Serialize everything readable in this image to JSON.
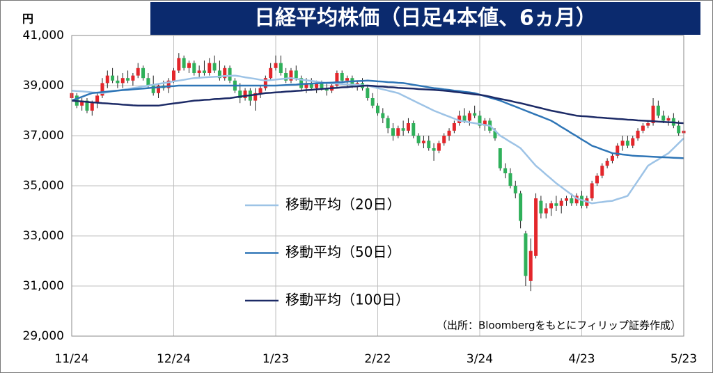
{
  "chart_data": {
    "type": "candlestick",
    "title": "日経平均株価（日足4本値、6ヵ月）",
    "y_unit": "円",
    "source": "（出所：Bloombergをもとにフィリップ証券作成）",
    "ylim": [
      29000,
      41000
    ],
    "yticks": [
      {
        "value": 29000,
        "label": "29,000"
      },
      {
        "value": 31000,
        "label": "31,000"
      },
      {
        "value": 33000,
        "label": "33,000"
      },
      {
        "value": 35000,
        "label": "35,000"
      },
      {
        "value": 37000,
        "label": "37,000"
      },
      {
        "value": 39000,
        "label": "39,000"
      },
      {
        "value": 41000,
        "label": "41,000"
      }
    ],
    "grid": true,
    "up_color": "#e3262b",
    "down_color": "#2fb05a",
    "categories": [
      "11/24",
      null,
      null,
      null,
      null,
      null,
      null,
      null,
      null,
      null,
      null,
      null,
      null,
      null,
      null,
      null,
      null,
      null,
      null,
      null,
      "12/24",
      null,
      null,
      null,
      null,
      null,
      null,
      null,
      null,
      null,
      null,
      null,
      null,
      null,
      null,
      null,
      null,
      null,
      null,
      null,
      "1/23",
      null,
      null,
      null,
      null,
      null,
      null,
      null,
      null,
      null,
      null,
      null,
      null,
      null,
      null,
      null,
      null,
      null,
      null,
      null,
      "2/22",
      null,
      null,
      null,
      null,
      null,
      null,
      null,
      null,
      null,
      null,
      null,
      null,
      null,
      null,
      null,
      null,
      null,
      null,
      null,
      "3/24",
      null,
      null,
      null,
      null,
      null,
      null,
      null,
      null,
      null,
      null,
      null,
      null,
      null,
      null,
      null,
      null,
      null,
      null,
      null,
      "4/23",
      null,
      null,
      null,
      null,
      null,
      null,
      null,
      null,
      null,
      null,
      null,
      null,
      null,
      null,
      null,
      null,
      null,
      null,
      null,
      "5/23"
    ],
    "ohlc": [
      [
        38500,
        38800,
        38300,
        38700
      ],
      [
        38600,
        38700,
        38100,
        38200
      ],
      [
        38200,
        38500,
        38000,
        38400
      ],
      [
        38400,
        38500,
        37900,
        38000
      ],
      [
        38000,
        38400,
        37800,
        38300
      ],
      [
        38300,
        38700,
        38100,
        38600
      ],
      [
        38600,
        39300,
        38500,
        39100
      ],
      [
        39100,
        39600,
        38900,
        39400
      ],
      [
        39400,
        39700,
        39100,
        39200
      ],
      [
        39200,
        39400,
        38900,
        39100
      ],
      [
        39100,
        39500,
        38900,
        39300
      ],
      [
        39300,
        39600,
        39100,
        39200
      ],
      [
        39200,
        39500,
        39000,
        39400
      ],
      [
        39400,
        39900,
        39300,
        39700
      ],
      [
        39700,
        39800,
        39200,
        39300
      ],
      [
        39300,
        39500,
        38900,
        39000
      ],
      [
        39000,
        39400,
        38600,
        38700
      ],
      [
        38700,
        39100,
        38500,
        39000
      ],
      [
        39000,
        39200,
        38800,
        38900
      ],
      [
        38900,
        39300,
        38700,
        39200
      ],
      [
        39200,
        39700,
        39100,
        39600
      ],
      [
        39600,
        40300,
        39500,
        40100
      ],
      [
        40100,
        40200,
        39600,
        39700
      ],
      [
        39700,
        40000,
        39500,
        39900
      ],
      [
        39900,
        40000,
        39400,
        39500
      ],
      [
        39500,
        39800,
        39300,
        39600
      ],
      [
        39600,
        40000,
        39400,
        39500
      ],
      [
        39500,
        40100,
        39400,
        39900
      ],
      [
        39900,
        40200,
        39500,
        39600
      ],
      [
        39600,
        40000,
        39200,
        39300
      ],
      [
        39300,
        39800,
        39200,
        39700
      ],
      [
        39700,
        39800,
        39100,
        39200
      ],
      [
        39200,
        39300,
        38700,
        38800
      ],
      [
        38800,
        39100,
        38300,
        38500
      ],
      [
        38500,
        38900,
        38400,
        38800
      ],
      [
        38800,
        38900,
        38200,
        38400
      ],
      [
        38400,
        38900,
        38000,
        38700
      ],
      [
        38700,
        39000,
        38500,
        38900
      ],
      [
        38900,
        39400,
        38800,
        39300
      ],
      [
        39300,
        39900,
        39200,
        39700
      ],
      [
        39700,
        40200,
        39600,
        39900
      ],
      [
        39900,
        40200,
        39400,
        39500
      ],
      [
        39500,
        39700,
        39100,
        39200
      ],
      [
        39200,
        39700,
        39100,
        39600
      ],
      [
        39600,
        39800,
        39200,
        39300
      ],
      [
        39300,
        39400,
        38800,
        38900
      ],
      [
        38900,
        39300,
        38700,
        39100
      ],
      [
        39100,
        39300,
        38800,
        38900
      ],
      [
        38900,
        39200,
        38700,
        39100
      ],
      [
        39100,
        39200,
        38800,
        38900
      ],
      [
        38900,
        39100,
        38600,
        38800
      ],
      [
        38800,
        39100,
        38700,
        39000
      ],
      [
        39000,
        39600,
        38900,
        39500
      ],
      [
        39500,
        39600,
        39100,
        39200
      ],
      [
        39200,
        39400,
        38900,
        39300
      ],
      [
        39300,
        39400,
        38900,
        39000
      ],
      [
        39000,
        39200,
        38800,
        39100
      ],
      [
        39100,
        39300,
        38800,
        38900
      ],
      [
        38900,
        39000,
        38400,
        38500
      ],
      [
        38500,
        38700,
        38100,
        38200
      ],
      [
        38200,
        38300,
        37800,
        37900
      ],
      [
        37900,
        38100,
        37500,
        37700
      ],
      [
        37700,
        37800,
        37100,
        37300
      ],
      [
        37300,
        37500,
        36800,
        37000
      ],
      [
        37000,
        37400,
        36900,
        37300
      ],
      [
        37300,
        37600,
        37000,
        37200
      ],
      [
        37200,
        37700,
        37100,
        37500
      ],
      [
        37500,
        37600,
        36900,
        37000
      ],
      [
        37000,
        37100,
        36600,
        36700
      ],
      [
        36700,
        37000,
        36500,
        36800
      ],
      [
        36800,
        37000,
        36400,
        36500
      ],
      [
        36500,
        36700,
        36000,
        36400
      ],
      [
        36400,
        36800,
        36300,
        36700
      ],
      [
        36700,
        37100,
        36600,
        37000
      ],
      [
        37000,
        37300,
        36800,
        37200
      ],
      [
        37200,
        37600,
        37100,
        37500
      ],
      [
        37500,
        38000,
        37400,
        37800
      ],
      [
        37800,
        38100,
        37500,
        37600
      ],
      [
        37600,
        38000,
        37400,
        37900
      ],
      [
        37900,
        38200,
        37700,
        37800
      ],
      [
        37800,
        38000,
        37300,
        37400
      ],
      [
        37400,
        37700,
        37200,
        37600
      ],
      [
        37600,
        37700,
        37100,
        37200
      ],
      [
        37200,
        37300,
        36800,
        36900
      ],
      [
        36500,
        36500,
        35600,
        35700
      ],
      [
        35700,
        35900,
        35300,
        35500
      ],
      [
        35500,
        35700,
        34900,
        35000
      ],
      [
        35000,
        35200,
        34500,
        34700
      ],
      [
        34700,
        34800,
        33300,
        33600
      ],
      [
        33100,
        33200,
        31000,
        31400
      ],
      [
        31200,
        32900,
        30800,
        32400
      ],
      [
        32200,
        34700,
        32100,
        34500
      ],
      [
        34400,
        34600,
        33700,
        33900
      ],
      [
        33900,
        34300,
        33700,
        34100
      ],
      [
        34100,
        34400,
        33800,
        34300
      ],
      [
        34300,
        34600,
        34000,
        34200
      ],
      [
        34200,
        34500,
        33900,
        34400
      ],
      [
        34400,
        34600,
        34200,
        34500
      ],
      [
        34500,
        34700,
        34200,
        34300
      ],
      [
        34300,
        34700,
        34200,
        34600
      ],
      [
        34600,
        34800,
        34100,
        34200
      ],
      [
        34200,
        34600,
        34100,
        34500
      ],
      [
        34500,
        35200,
        34400,
        35100
      ],
      [
        35100,
        35500,
        35000,
        35400
      ],
      [
        35400,
        35900,
        35300,
        35800
      ],
      [
        35800,
        36100,
        35700,
        36000
      ],
      [
        36000,
        36300,
        35900,
        36200
      ],
      [
        36200,
        36700,
        36100,
        36600
      ],
      [
        36600,
        37000,
        36400,
        36800
      ],
      [
        36800,
        37000,
        36500,
        36600
      ],
      [
        36600,
        37000,
        36500,
        36900
      ],
      [
        36900,
        37300,
        36800,
        37200
      ],
      [
        37200,
        37500,
        37100,
        37400
      ],
      [
        37400,
        37600,
        37300,
        37500
      ],
      [
        37500,
        38500,
        37400,
        38200
      ],
      [
        38200,
        38400,
        37700,
        37800
      ],
      [
        37800,
        38000,
        37500,
        37600
      ],
      [
        37600,
        37800,
        37400,
        37700
      ],
      [
        37700,
        37900,
        37300,
        37400
      ],
      [
        37400,
        37600,
        37000,
        37100
      ],
      [
        37100,
        37300,
        36900,
        37200
      ]
    ],
    "series": [
      {
        "name": "移動平均（20日）",
        "color": "#9dc3e6",
        "values": [
          38800,
          38780,
          38770,
          38750,
          38730,
          38720,
          38700,
          38730,
          38770,
          38800,
          38830,
          38870,
          38900,
          38930,
          38970,
          39000,
          39030,
          39070,
          39100,
          39130,
          39170,
          39200,
          39230,
          39270,
          39300,
          39310,
          39330,
          39340,
          39350,
          39360,
          39380,
          39390,
          39400,
          39370,
          39330,
          39300,
          39270,
          39230,
          39200,
          39220,
          39240,
          39260,
          39280,
          39300,
          39270,
          39240,
          39210,
          39190,
          39160,
          39130,
          39100,
          39090,
          39080,
          39060,
          39050,
          39040,
          39030,
          39010,
          39000,
          38950,
          38900,
          38850,
          38800,
          38750,
          38700,
          38600,
          38500,
          38400,
          38300,
          38200,
          38100,
          38000,
          37920,
          37840,
          37760,
          37680,
          37600,
          37570,
          37530,
          37500,
          37470,
          37430,
          37400,
          37200,
          37000,
          36880,
          36750,
          36630,
          36500,
          36270,
          36030,
          35800,
          35630,
          35450,
          35280,
          35100,
          34950,
          34800,
          34650,
          34500,
          34430,
          34370,
          34300,
          34330,
          34350,
          34380,
          34400,
          34470,
          34530,
          34600,
          34900,
          35200,
          35500,
          35800,
          35930,
          36050,
          36180,
          36300,
          36500,
          36700,
          36900
        ]
      },
      {
        "name": "移動平均（50日）",
        "color": "#2e75b6",
        "values": [
          38400,
          38480,
          38550,
          38630,
          38700,
          38720,
          38740,
          38760,
          38780,
          38800,
          38820,
          38830,
          38850,
          38870,
          38880,
          38900,
          38920,
          38930,
          38950,
          38970,
          38980,
          39000,
          39000,
          39000,
          39000,
          39000,
          39000,
          39000,
          39000,
          39000,
          39000,
          39000,
          39000,
          39000,
          39000,
          39000,
          39000,
          39000,
          39000,
          39000,
          39000,
          39010,
          39020,
          39030,
          39040,
          39060,
          39070,
          39080,
          39090,
          39100,
          39110,
          39120,
          39130,
          39140,
          39160,
          39170,
          39180,
          39190,
          39200,
          39190,
          39170,
          39160,
          39140,
          39130,
          39110,
          39100,
          39070,
          39030,
          39000,
          38970,
          38930,
          38900,
          38880,
          38850,
          38830,
          38800,
          38780,
          38750,
          38730,
          38700,
          38640,
          38580,
          38520,
          38460,
          38400,
          38320,
          38240,
          38160,
          38080,
          38000,
          37920,
          37840,
          37760,
          37680,
          37600,
          37480,
          37350,
          37230,
          37100,
          36980,
          36850,
          36730,
          36600,
          36530,
          36450,
          36380,
          36300,
          36280,
          36250,
          36230,
          36200,
          36190,
          36180,
          36170,
          36160,
          36150,
          36140,
          36130,
          36120,
          36110,
          36100
        ]
      },
      {
        "name": "移動平均（100日）",
        "color": "#1c2a66",
        "values": [
          38400,
          38380,
          38370,
          38350,
          38330,
          38320,
          38300,
          38290,
          38270,
          38260,
          38240,
          38230,
          38210,
          38200,
          38200,
          38200,
          38200,
          38200,
          38230,
          38260,
          38290,
          38310,
          38340,
          38370,
          38400,
          38410,
          38430,
          38440,
          38460,
          38470,
          38490,
          38500,
          38530,
          38560,
          38590,
          38610,
          38640,
          38670,
          38700,
          38710,
          38730,
          38740,
          38760,
          38770,
          38790,
          38800,
          38820,
          38830,
          38850,
          38870,
          38880,
          38900,
          38910,
          38930,
          38940,
          38960,
          38970,
          38990,
          39000,
          38990,
          38970,
          38960,
          38940,
          38930,
          38910,
          38900,
          38890,
          38880,
          38860,
          38850,
          38840,
          38830,
          38810,
          38800,
          38780,
          38750,
          38730,
          38700,
          38680,
          38650,
          38630,
          38600,
          38560,
          38510,
          38470,
          38430,
          38390,
          38340,
          38300,
          38250,
          38200,
          38150,
          38100,
          38050,
          38000,
          37960,
          37920,
          37880,
          37840,
          37800,
          37780,
          37770,
          37750,
          37730,
          37720,
          37700,
          37690,
          37670,
          37660,
          37640,
          37630,
          37610,
          37600,
          37590,
          37580,
          37560,
          37550,
          37540,
          37530,
          37510,
          37500
        ]
      }
    ]
  }
}
